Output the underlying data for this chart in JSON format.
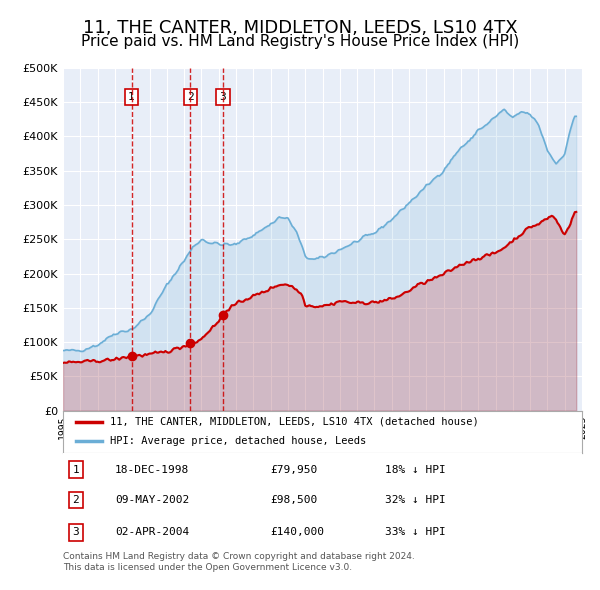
{
  "title": "11, THE CANTER, MIDDLETON, LEEDS, LS10 4TX",
  "subtitle": "Price paid vs. HM Land Registry's House Price Index (HPI)",
  "title_fontsize": 13,
  "subtitle_fontsize": 11,
  "hpi_color": "#6baed6",
  "price_color": "#cc0000",
  "plot_bg": "#e8eef8",
  "ylim": [
    0,
    500000
  ],
  "yticks": [
    0,
    50000,
    100000,
    150000,
    200000,
    250000,
    300000,
    350000,
    400000,
    450000,
    500000
  ],
  "purchases": [
    {
      "label": "1",
      "date": "18-DEC-1998",
      "price": 79950,
      "pct": "18% ↓ HPI",
      "year": 1998.96
    },
    {
      "label": "2",
      "date": "09-MAY-2002",
      "price": 98500,
      "pct": "32% ↓ HPI",
      "year": 2002.36
    },
    {
      "label": "3",
      "date": "02-APR-2004",
      "price": 140000,
      "pct": "33% ↓ HPI",
      "year": 2004.25
    }
  ],
  "legend_label_price": "11, THE CANTER, MIDDLETON, LEEDS, LS10 4TX (detached house)",
  "legend_label_hpi": "HPI: Average price, detached house, Leeds",
  "footnote": "Contains HM Land Registry data © Crown copyright and database right 2024.\nThis data is licensed under the Open Government Licence v3.0."
}
